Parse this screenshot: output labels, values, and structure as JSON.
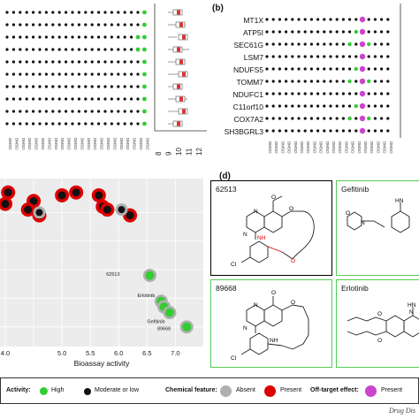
{
  "panel_b": {
    "label": "(b)",
    "genes": [
      "MT1X",
      "ATP5I",
      "SEC61G",
      "LSM7",
      "NDUFS5",
      "TOMM7",
      "NDUFC1",
      "C11orf10",
      "COX7A2",
      "SH3BGRL3"
    ]
  },
  "panel_a": {
    "axis_ticks": [
      "8",
      "9",
      "10",
      "11",
      "12"
    ],
    "sample_label": "DMSO"
  },
  "panel_c": {
    "chart_data": {
      "type": "scatter",
      "xlabel": "Bioassay activity",
      "x_ticks": [
        "4.0",
        "5.0",
        "5.5",
        "6.0",
        "6.5",
        "7.0"
      ],
      "series": [
        {
          "name": "Present / Moderate or low",
          "points": [
            [
              4.05,
              7.7
            ],
            [
              4.0,
              7.3
            ],
            [
              4.5,
              7.4
            ],
            [
              4.6,
              6.9
            ],
            [
              5.25,
              7.7
            ],
            [
              5.65,
              7.6
            ],
            [
              5.72,
              7.2
            ],
            [
              5.8,
              7.1
            ],
            [
              6.2,
              6.9
            ],
            [
              5.0,
              7.6
            ],
            [
              4.4,
              7.1
            ]
          ]
        },
        {
          "name": "Absent / Moderate or low",
          "points": [
            [
              4.6,
              7.0
            ],
            [
              6.05,
              7.1
            ]
          ]
        },
        {
          "name": "Absent / High",
          "points": [
            [
              6.55,
              4.8
            ],
            [
              6.75,
              3.9
            ],
            [
              6.8,
              3.7
            ],
            [
              6.9,
              3.5
            ],
            [
              7.2,
              3.0
            ]
          ]
        }
      ],
      "annotations": [
        "62513",
        "Erlotinib",
        "Gefitinib",
        "89668"
      ]
    }
  },
  "panel_d": {
    "label": "(d)",
    "compounds": [
      "62513",
      "Gefitinib",
      "89668",
      "Erlotinib"
    ],
    "atom_labels": [
      "N",
      "N",
      "O",
      "O",
      "NH",
      "Cl",
      "O",
      "HN",
      "N",
      "N",
      "O",
      "O",
      "NH",
      "Cl",
      "N",
      "O",
      "HN",
      "N",
      "N",
      "O",
      "O"
    ]
  },
  "legend": {
    "activity_title": "Activity:",
    "high": "High",
    "moderate": "Moderate or low",
    "chemical_title": "Chemical feature:",
    "absent": "Absent",
    "present": "Present",
    "offtarget_title": "Off-target effect:",
    "offtarget_present": "Present"
  },
  "footer": "Drug Dis",
  "colors": {
    "green": "#33cc33",
    "red": "#dd0000",
    "magenta": "#cc44cc",
    "grey": "#b0b0b0",
    "box_border_green": "#55cc55"
  }
}
